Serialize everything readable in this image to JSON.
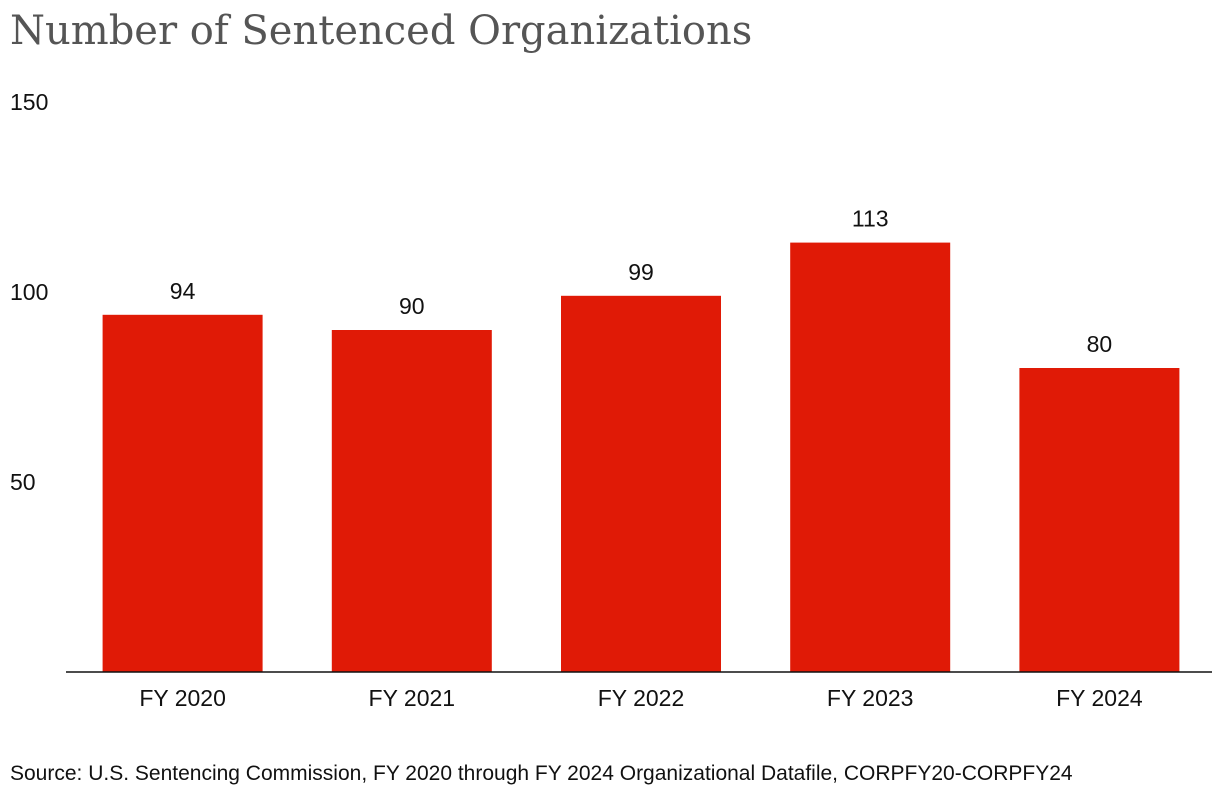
{
  "accent_color": "#e01a06",
  "chart_data": {
    "type": "bar",
    "title": "Number of Sentenced Organizations",
    "categories": [
      "FY 2020",
      "FY 2021",
      "FY 2022",
      "FY 2023",
      "FY 2024"
    ],
    "values": [
      94,
      90,
      99,
      113,
      80
    ],
    "y_ticks": [
      50,
      100,
      150
    ],
    "ylim": [
      0,
      150
    ],
    "xlabel": "",
    "ylabel": "",
    "grid": false,
    "source": "Source: U.S. Sentencing Commission, FY 2020 through FY 2024 Organizational Datafile, CORPFY20-CORPFY24"
  }
}
